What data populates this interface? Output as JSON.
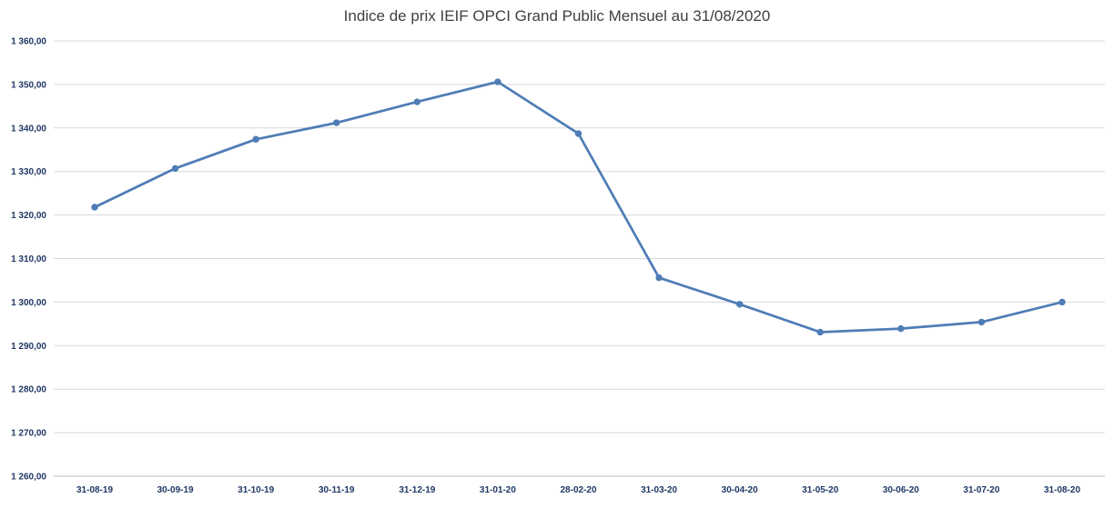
{
  "chart_data": {
    "type": "line",
    "title": "Indice de prix IEIF OPCI Grand Public Mensuel au 31/08/2020",
    "xlabel": "",
    "ylabel": "",
    "categories": [
      "31-08-19",
      "30-09-19",
      "31-10-19",
      "30-11-19",
      "31-12-19",
      "31-01-20",
      "28-02-20",
      "31-03-20",
      "30-04-20",
      "31-05-20",
      "30-06-20",
      "31-07-20",
      "31-08-20"
    ],
    "series": [
      {
        "values": [
          1321.8,
          1330.7,
          1337.4,
          1341.2,
          1346.0,
          1350.6,
          1338.7,
          1305.6,
          1299.5,
          1293.1,
          1293.9,
          1295.4,
          1300.0
        ],
        "color": "#4f7db6"
      }
    ],
    "ylim": [
      1260,
      1360
    ],
    "yticks": [
      1260,
      1270,
      1280,
      1290,
      1300,
      1310,
      1320,
      1330,
      1340,
      1350,
      1360
    ],
    "ytick_labels": [
      "1 260,00",
      "1 270,00",
      "1 280,00",
      "1 290,00",
      "1 300,00",
      "1 310,00",
      "1 320,00",
      "1 330,00",
      "1 340,00",
      "1 350,00",
      "1 360,00"
    ],
    "grid": true,
    "legend": "none",
    "markers": true
  }
}
